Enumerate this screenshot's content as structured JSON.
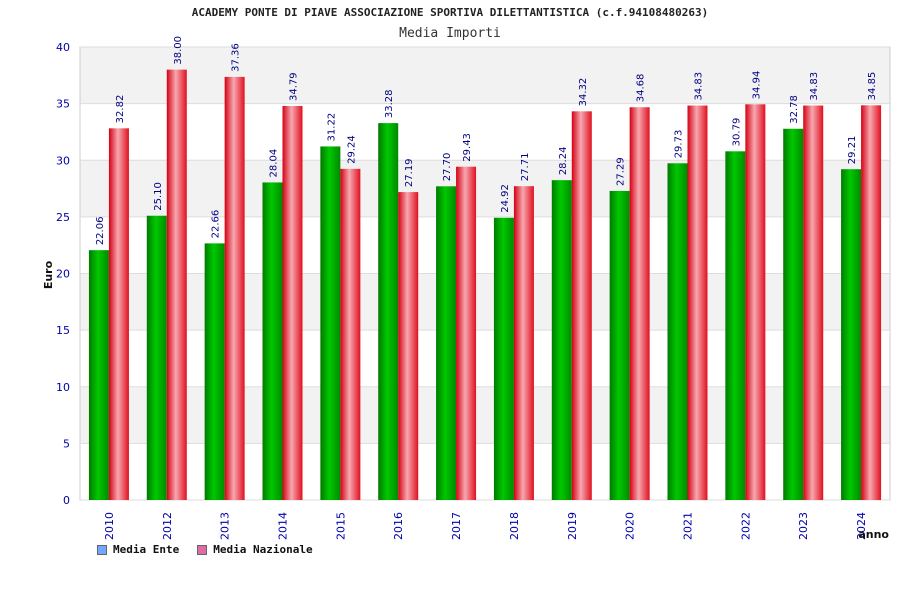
{
  "colors": {
    "ente": "#00b000",
    "nazionale": "#ee1a2a",
    "legend_ente": "#6fa8ff",
    "legend_nazionale": "#e06aa8",
    "axis_text": "#0000aa",
    "value_text": "#000080"
  },
  "chart_data": {
    "type": "bar",
    "title": "ACADEMY PONTE DI PIAVE ASSOCIAZIONE SPORTIVA DILETTANTISTICA (c.f.94108480263)",
    "subtitle": "Media Importi",
    "xlabel": "anno",
    "ylabel": "Euro",
    "ylim": [
      0,
      40
    ],
    "yticks": [
      0,
      5,
      10,
      15,
      20,
      25,
      30,
      35,
      40
    ],
    "grid": true,
    "legend_position": "bottom-left",
    "categories": [
      "2010",
      "2012",
      "2013",
      "2014",
      "2015",
      "2016",
      "2017",
      "2018",
      "2019",
      "2020",
      "2021",
      "2022",
      "2023",
      "2024"
    ],
    "series": [
      {
        "name": "Media Ente",
        "values": [
          22.06,
          25.1,
          22.66,
          28.04,
          31.22,
          33.28,
          27.7,
          24.92,
          28.24,
          27.29,
          29.73,
          30.79,
          32.78,
          29.21
        ]
      },
      {
        "name": "Media Nazionale",
        "values": [
          32.82,
          38.0,
          37.36,
          34.79,
          29.24,
          27.19,
          29.43,
          27.71,
          34.32,
          34.68,
          34.83,
          34.94,
          34.83,
          34.85
        ]
      }
    ],
    "value_labels": [
      [
        "22.06",
        "25.10",
        "22.66",
        "28.04",
        "31.22",
        "33.28",
        "27.70",
        "24.92",
        "28.24",
        "27.29",
        "29.73",
        "30.79",
        "32.78",
        "29.21"
      ],
      [
        "32.82",
        "38.00",
        "37.36",
        "34.79",
        "29.24",
        "27.19",
        "29.43",
        "27.71",
        "34.32",
        "34.68",
        "34.83",
        "34.94",
        "34.83",
        "34.85"
      ]
    ]
  }
}
